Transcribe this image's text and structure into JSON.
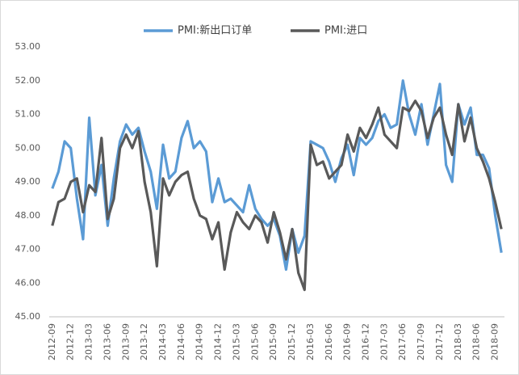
{
  "chart_data": {
    "type": "line",
    "categories": [
      "2012-09",
      null,
      null,
      "2012-12",
      null,
      null,
      "2013-03",
      null,
      null,
      "2013-06",
      null,
      null,
      "2013-09",
      null,
      null,
      "2013-12",
      null,
      null,
      "2014-03",
      null,
      null,
      "2014-06",
      null,
      null,
      "2014-09",
      null,
      null,
      "2014-12",
      null,
      null,
      "2015-03",
      null,
      null,
      "2015-06",
      null,
      null,
      "2015-09",
      null,
      null,
      "2015-12",
      null,
      null,
      "2016-03",
      null,
      null,
      "2016-06",
      null,
      null,
      "2016-09",
      null,
      null,
      "2016-12",
      null,
      null,
      "2017-03",
      null,
      null,
      "2017-06",
      null,
      null,
      "2017-09",
      null,
      null,
      "2017-12",
      null,
      null,
      "2018-03",
      null,
      null,
      "2018-06",
      null,
      null,
      "2018-09",
      null
    ],
    "series": [
      {
        "name": "PMI:新出口订单",
        "color": "#5b9bd5",
        "values": [
          48.8,
          49.3,
          50.2,
          50.0,
          48.5,
          47.3,
          50.9,
          48.6,
          49.5,
          47.7,
          49.1,
          50.2,
          50.7,
          50.4,
          50.6,
          49.9,
          49.3,
          48.2,
          50.1,
          49.1,
          49.3,
          50.3,
          50.8,
          50.0,
          50.2,
          49.9,
          48.4,
          49.1,
          48.4,
          48.5,
          48.3,
          48.1,
          48.9,
          48.2,
          47.9,
          47.7,
          47.9,
          47.4,
          46.4,
          47.6,
          46.9,
          47.4,
          50.2,
          50.1,
          50.0,
          49.6,
          49.0,
          49.7,
          50.1,
          49.2,
          50.3,
          50.1,
          50.3,
          50.8,
          51.0,
          50.6,
          50.7,
          52.0,
          51.0,
          50.4,
          51.3,
          50.1,
          51.0,
          51.9,
          49.5,
          49.0,
          51.3,
          50.7,
          51.2,
          49.8,
          49.8,
          49.4,
          48.0,
          46.9
        ]
      },
      {
        "name": "PMI:进口",
        "color": "#595959",
        "values": [
          47.7,
          48.4,
          48.5,
          49.0,
          49.1,
          48.1,
          48.9,
          48.7,
          50.3,
          47.9,
          48.5,
          50.0,
          50.4,
          50.0,
          50.5,
          49.0,
          48.1,
          46.5,
          49.1,
          48.6,
          49.0,
          49.2,
          49.3,
          48.5,
          48.0,
          47.9,
          47.3,
          47.8,
          46.4,
          47.5,
          48.1,
          47.8,
          47.6,
          48.0,
          47.8,
          47.2,
          48.1,
          47.5,
          46.7,
          47.6,
          46.3,
          45.8,
          50.1,
          49.5,
          49.6,
          49.1,
          49.3,
          49.5,
          50.4,
          49.9,
          50.6,
          50.3,
          50.7,
          51.2,
          50.4,
          50.2,
          50.0,
          51.2,
          51.1,
          51.4,
          51.1,
          50.3,
          50.9,
          51.2,
          50.4,
          49.8,
          51.3,
          50.2,
          50.9,
          50.0,
          49.6,
          49.1,
          48.4,
          47.6
        ]
      }
    ],
    "ylim": [
      45,
      53
    ],
    "yticks": [
      {
        "value": 45,
        "label": "45.00"
      },
      {
        "value": 46,
        "label": "46.00"
      },
      {
        "value": 47,
        "label": "47.00"
      },
      {
        "value": 48,
        "label": "48.00"
      },
      {
        "value": 49,
        "label": "49.00"
      },
      {
        "value": 50,
        "label": "50.00"
      },
      {
        "value": 51,
        "label": "51.00"
      },
      {
        "value": 52,
        "label": "52.00"
      },
      {
        "value": 53,
        "label": "53.00"
      }
    ],
    "grid": false,
    "legend": "top"
  }
}
